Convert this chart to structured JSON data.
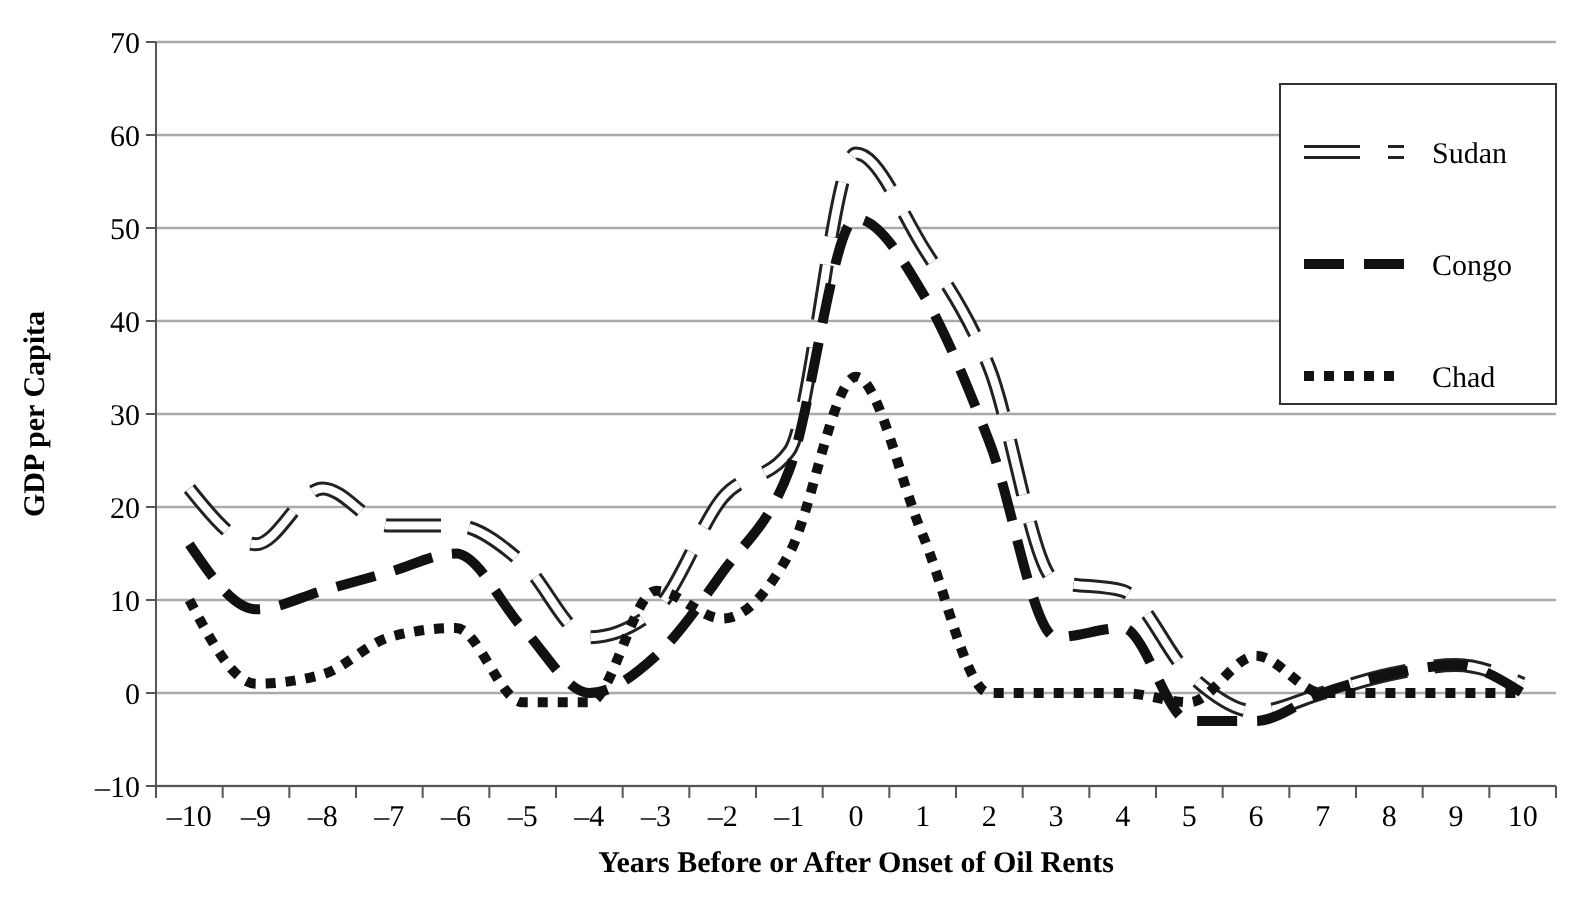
{
  "chart_data": {
    "type": "line",
    "xlabel": "Years Before or After Onset of Oil Rents",
    "ylabel": "GDP per Capita",
    "categories": [
      "–10",
      "–9",
      "–8",
      "–7",
      "–6",
      "–5",
      "–4",
      "–3",
      "–2",
      "–1",
      "0",
      "1",
      "2",
      "3",
      "4",
      "5",
      "6",
      "7",
      "8",
      "9",
      "10"
    ],
    "series": [
      {
        "name": "Sudan",
        "color": "#ffffff",
        "line_style": "dashed",
        "values": [
          22,
          16,
          22,
          18,
          18,
          14,
          6,
          9,
          21,
          26,
          58,
          48,
          35,
          12,
          11,
          2,
          -2,
          0,
          2,
          3,
          1
        ]
      },
      {
        "name": "Congo",
        "color": "#111111",
        "line_style": "dashed",
        "values": [
          16,
          9,
          11,
          13,
          15,
          7,
          0,
          4,
          13,
          24,
          51,
          43,
          27,
          6,
          7,
          -3,
          -3,
          0,
          2,
          3,
          0
        ]
      },
      {
        "name": "Chad",
        "color": "#111111",
        "line_style": "dotted",
        "values": [
          10,
          1,
          2,
          6,
          7,
          -1,
          -1,
          11,
          8,
          15,
          34,
          17,
          0,
          0,
          0,
          -1,
          4,
          0,
          0,
          0,
          0
        ]
      }
    ],
    "ylim": [
      -10,
      70
    ],
    "yticks": [
      {
        "value": -10,
        "label": "–10"
      },
      0,
      10,
      20,
      30,
      40,
      50,
      60,
      70
    ],
    "grid": "y",
    "legend": "top right",
    "marker": "none"
  }
}
